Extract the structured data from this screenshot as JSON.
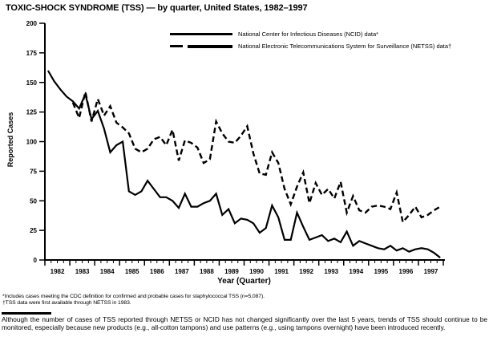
{
  "title": "TOXIC-SHOCK SYNDROME (TSS) — by quarter, United States, 1982–1997",
  "legend": [
    {
      "label": "National Center for Infectious Diseases (NCID) data*",
      "style": "solid"
    },
    {
      "label": "National Electronic Telecommunications System for Surveillance (NETSS) data†",
      "style": "dashed"
    }
  ],
  "footnotes": [
    "*Includes cases meeting the CDC definition for confirmed and probable cases for staphylococcal TSS (n=5,087).",
    "†TSS data were first available through NETSS in 1983."
  ],
  "note": "Although the number of cases of TSS reported through NETSS or NCID has not changed significantly over the last 5 years, trends of TSS should continue to be monitored, especially because new products (e.g., all-cotton tampons) and use patterns (e.g., using tampons overnight) have been introduced recently.",
  "chart_data": {
    "type": "line",
    "title": "TOXIC-SHOCK SYNDROME (TSS) — by quarter, United States, 1982–1997",
    "xlabel": "Year (Quarter)",
    "ylabel": "Reported Cases",
    "ylim": [
      0,
      200
    ],
    "ytick_step": 25,
    "years": [
      1982,
      1983,
      1984,
      1985,
      1986,
      1987,
      1988,
      1989,
      1990,
      1991,
      1992,
      1993,
      1994,
      1995,
      1996,
      1997
    ],
    "quarters_per_year": 4,
    "grid": false,
    "legend_position": "top-inside",
    "line_color": "#000000",
    "series": [
      {
        "name": "NCID",
        "line": "solid",
        "start_year": 1982,
        "values": [
          160,
          151,
          144,
          138,
          134,
          128,
          140,
          119,
          126,
          111,
          91,
          97,
          100,
          58,
          55,
          58,
          67,
          60,
          53,
          53,
          50,
          44,
          56,
          45,
          45,
          48,
          50,
          56,
          38,
          43,
          31,
          35,
          34,
          31,
          23,
          27,
          46,
          36,
          17,
          17,
          40,
          28,
          17,
          19,
          21,
          16,
          18,
          15,
          24,
          12,
          16,
          14,
          12,
          10,
          9,
          12,
          8,
          10,
          7,
          9,
          10,
          9,
          6,
          2
        ]
      },
      {
        "name": "NETSS",
        "line": "dashed",
        "start_year": 1983,
        "values": [
          133,
          120,
          142,
          117,
          136,
          122,
          130,
          116,
          112,
          107,
          94,
          91,
          94,
          102,
          104,
          97,
          110,
          84,
          101,
          99,
          95,
          82,
          85,
          117,
          107,
          100,
          99,
          105,
          113,
          90,
          73,
          72,
          91,
          82,
          60,
          47,
          62,
          74,
          48,
          65,
          55,
          60,
          52,
          66,
          40,
          54,
          42,
          40,
          45,
          46,
          45,
          43,
          57,
          32,
          38,
          45,
          36,
          38,
          42,
          45
        ]
      }
    ]
  }
}
